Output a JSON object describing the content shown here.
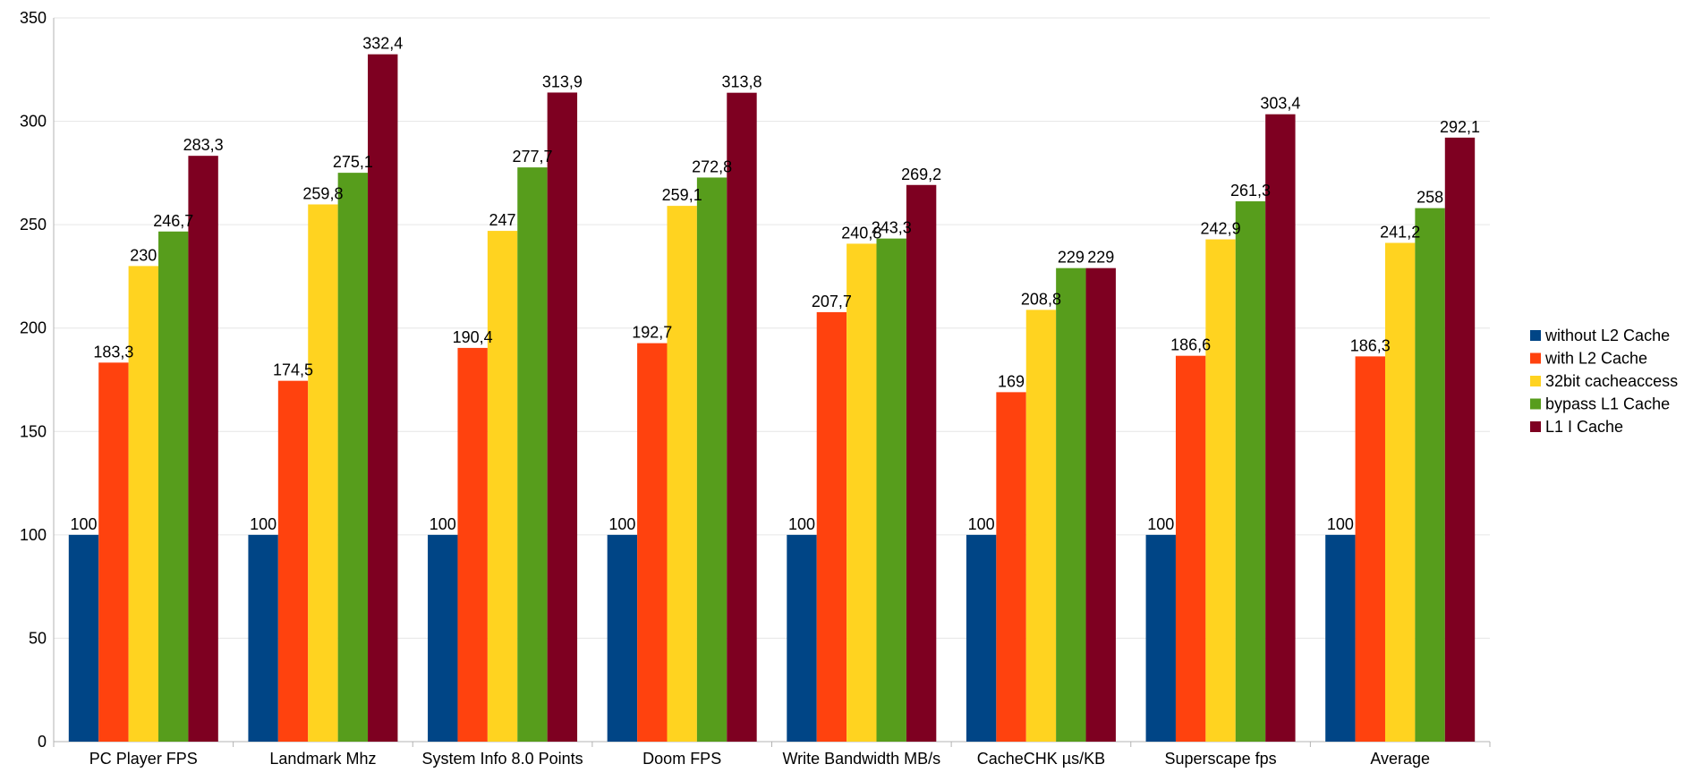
{
  "chart_data": {
    "type": "bar",
    "title": "",
    "xlabel": "",
    "ylabel": "",
    "ylim": [
      0,
      350
    ],
    "yticks": [
      0,
      50,
      100,
      150,
      200,
      250,
      300,
      350
    ],
    "grid": true,
    "legend_position": "right",
    "categories": [
      "PC Player FPS",
      "Landmark Mhz",
      "System Info 8.0 Points",
      "Doom FPS",
      "Write Bandwidth MB/s",
      "CacheCHK µs/KB",
      "Superscape fps",
      "Average"
    ],
    "series": [
      {
        "name": "without L2 Cache",
        "color": "#004586",
        "values": [
          100,
          100,
          100,
          100,
          100,
          100,
          100,
          100
        ],
        "labels": [
          "100",
          "100",
          "100",
          "100",
          "100",
          "100",
          "100",
          "100"
        ]
      },
      {
        "name": "with L2 Cache",
        "color": "#ff420e",
        "values": [
          183.3,
          174.5,
          190.4,
          192.7,
          207.7,
          169,
          186.6,
          186.3
        ],
        "labels": [
          "183,3",
          "174,5",
          "190,4",
          "192,7",
          "207,7",
          "169",
          "186,6",
          "186,3"
        ]
      },
      {
        "name": "32bit cacheaccess",
        "color": "#ffd320",
        "values": [
          230,
          259.8,
          247,
          259.1,
          240.8,
          208.8,
          242.9,
          241.2
        ],
        "labels": [
          "230",
          "259,8",
          "247",
          "259,1",
          "240,8",
          "208,8",
          "242,9",
          "241,2"
        ]
      },
      {
        "name": "bypass L1 Cache",
        "color": "#579d1c",
        "values": [
          246.7,
          275.1,
          277.7,
          272.8,
          243.3,
          229,
          261.3,
          258
        ],
        "labels": [
          "246,7",
          "275,1",
          "277,7",
          "272,8",
          "243,3",
          "229",
          "261,3",
          "258"
        ]
      },
      {
        "name": "L1 I Cache",
        "color": "#7e0021",
        "values": [
          283.3,
          332.4,
          313.9,
          313.8,
          269.2,
          229,
          303.4,
          292.1
        ],
        "labels": [
          "283,3",
          "332,4",
          "313,9",
          "313,8",
          "269,2",
          "229",
          "303,4",
          "292,1"
        ]
      }
    ]
  }
}
